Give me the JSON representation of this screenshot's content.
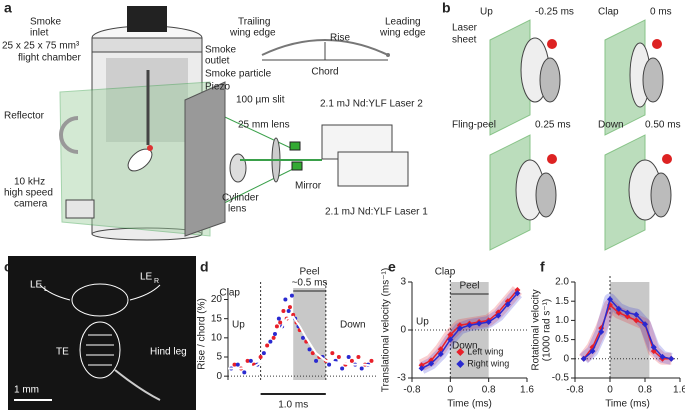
{
  "panel_letters": [
    "a",
    "b",
    "c",
    "d",
    "e",
    "f"
  ],
  "panel_a": {
    "smoke_inlet": [
      "Smoke",
      "inlet"
    ],
    "smoke_outlet": [
      "Smoke",
      "outlet"
    ],
    "chamber": [
      "25 x 25 x 75 mm³",
      "flight chamber"
    ],
    "smoke_particle": "Smoke particle",
    "piezo": "Piezo",
    "reflector": "Reflector",
    "camera": [
      "10 kHz",
      "high speed",
      "camera"
    ],
    "slit": "100 µm slit",
    "lens": "25 mm lens",
    "cylinder_lens": [
      "Cylinder",
      "lens"
    ],
    "mirror": "Mirror",
    "laser2": "2.1 mJ Nd:YLF Laser 2",
    "laser1": "2.1 mJ Nd:YLF Laser 1",
    "trailing": [
      "Trailing",
      "wing edge"
    ],
    "leading": [
      "Leading",
      "wing edge"
    ],
    "rise": "Rise",
    "chord": "Chord"
  },
  "panel_b": {
    "laser_sheet": [
      "Laser",
      "sheet"
    ],
    "frames": [
      {
        "phase": "Up",
        "time": "-0.25 ms"
      },
      {
        "phase": "Clap",
        "time": "0 ms"
      },
      {
        "phase": "Fling-peel",
        "time": "0.25 ms"
      },
      {
        "phase": "Down",
        "time": "0.50 ms"
      }
    ]
  },
  "panel_c": {
    "le_l": {
      "text": "LE",
      "sub": "L"
    },
    "le_r": {
      "text": "LE",
      "sub": "R"
    },
    "te": "TE",
    "hind_leg": "Hind leg",
    "scale": "1 mm"
  },
  "chart_data": [
    {
      "type": "scatter",
      "ylabel": "Rise / chord (%)",
      "xlim": [
        -0.5,
        1.8
      ],
      "ylim": [
        -1,
        23
      ],
      "yticks": [
        0,
        5,
        10,
        15,
        20
      ],
      "shade": [
        0.5,
        1.0
      ],
      "vlines": [
        0,
        1.0
      ],
      "hlines": [
        0
      ],
      "annotations": [
        "Clap",
        "Up",
        "Peel",
        "~0.5 ms",
        "Down"
      ],
      "scalebar": {
        "value": 1.0,
        "label": "1.0 ms"
      },
      "series": [
        {
          "color": "#e8202a",
          "x": [
            -0.4,
            -0.3,
            -0.2,
            -0.1,
            0,
            0.1,
            0.2,
            0.25,
            0.3,
            0.35,
            0.4,
            0.45,
            0.5,
            0.55,
            0.6,
            0.7,
            0.8,
            0.9,
            1.0,
            1.1,
            1.2,
            1.3,
            1.4,
            1.5,
            1.6,
            1.7
          ],
          "values": [
            3,
            2,
            4,
            3,
            5,
            8,
            10,
            13,
            14,
            17,
            15,
            18,
            16,
            14,
            12,
            9,
            6,
            5,
            4,
            6,
            5,
            3,
            4,
            5,
            3,
            4
          ]
        },
        {
          "color": "#2a2ad0",
          "x": [
            -0.45,
            -0.35,
            -0.25,
            -0.15,
            -0.05,
            0.05,
            0.15,
            0.22,
            0.28,
            0.33,
            0.38,
            0.43,
            0.48,
            0.53,
            0.58,
            0.65,
            0.75,
            0.85,
            0.95,
            1.05,
            1.15,
            1.25,
            1.35,
            1.45,
            1.55,
            1.65
          ],
          "values": [
            2,
            3,
            1,
            4,
            3,
            6,
            9,
            11,
            15,
            13,
            20,
            17,
            21,
            15,
            13,
            10,
            7,
            4,
            5,
            3,
            4,
            2,
            5,
            3,
            2,
            3
          ]
        }
      ],
      "mean": {
        "color": "#ffffff",
        "x": [
          -0.5,
          -0.3,
          -0.1,
          0.05,
          0.2,
          0.3,
          0.4,
          0.5,
          0.6,
          0.7,
          0.85,
          1.0,
          1.2,
          1.4,
          1.6,
          1.8
        ],
        "values": [
          2,
          2,
          2.5,
          4,
          8,
          12,
          15,
          15.5,
          13,
          10,
          6,
          4,
          3.5,
          3,
          3,
          2.5
        ]
      }
    },
    {
      "type": "line",
      "ylabel": [
        "Translational velocity (ms⁻¹)"
      ],
      "xlabel": "Time (ms)",
      "xlim": [
        -0.8,
        1.6
      ],
      "ylim": [
        -3,
        3
      ],
      "xticks": [
        -0.8,
        0,
        0.8,
        1.6
      ],
      "yticks": [
        -3,
        0,
        3
      ],
      "shade": [
        0,
        0.8
      ],
      "vlines": [
        0
      ],
      "hlines": [
        0
      ],
      "annotations": [
        "Clap",
        "Peel",
        "Up",
        "Down"
      ],
      "legend": "lower right",
      "series": [
        {
          "name": "Left wing",
          "color": "#e8202a",
          "x": [
            -0.6,
            -0.4,
            -0.2,
            0,
            0.2,
            0.4,
            0.6,
            0.8,
            1.0,
            1.2,
            1.4
          ],
          "values": [
            -2.2,
            -1.9,
            -1.2,
            -0.3,
            0.3,
            0.4,
            0.5,
            0.6,
            1.1,
            1.8,
            2.5
          ]
        },
        {
          "name": "Right wing",
          "color": "#2a2ad0",
          "x": [
            -0.6,
            -0.4,
            -0.2,
            0,
            0.2,
            0.4,
            0.6,
            0.8,
            1.0,
            1.2,
            1.4
          ],
          "values": [
            -2.4,
            -2.1,
            -1.5,
            -0.6,
            0.1,
            0.3,
            0.4,
            0.5,
            0.9,
            1.6,
            2.3
          ]
        }
      ]
    },
    {
      "type": "line",
      "ylabel": [
        "Rotational velocity",
        "(1000 rad s⁻¹)"
      ],
      "xlabel": "Time (ms)",
      "xlim": [
        -0.8,
        1.6
      ],
      "ylim": [
        -0.5,
        2.0
      ],
      "xticks": [
        -0.8,
        0,
        0.8,
        1.6
      ],
      "yticks": [
        -0.5,
        0,
        0.5,
        {
          "value": 1,
          "label": "1.0"
        },
        1.5,
        {
          "value": 2,
          "label": "2.0"
        }
      ],
      "shade": [
        0,
        0.9
      ],
      "vlines": [
        0
      ],
      "hlines": [
        0
      ],
      "series": [
        {
          "name": "Left wing",
          "color": "#e8202a",
          "x": [
            -0.6,
            -0.4,
            -0.2,
            0,
            0.2,
            0.4,
            0.6,
            0.8,
            1.0,
            1.2,
            1.4
          ],
          "values": [
            0.0,
            0.3,
            0.8,
            1.4,
            1.2,
            1.1,
            1.0,
            0.9,
            0.2,
            0.0,
            0.0
          ]
        },
        {
          "name": "Right wing",
          "color": "#2a2ad0",
          "x": [
            -0.6,
            -0.4,
            -0.2,
            0,
            0.2,
            0.4,
            0.6,
            0.8,
            1.0,
            1.2,
            1.4
          ],
          "values": [
            0.0,
            0.2,
            0.7,
            1.55,
            1.3,
            1.2,
            1.15,
            0.9,
            0.3,
            0.05,
            0.0
          ]
        }
      ]
    }
  ]
}
